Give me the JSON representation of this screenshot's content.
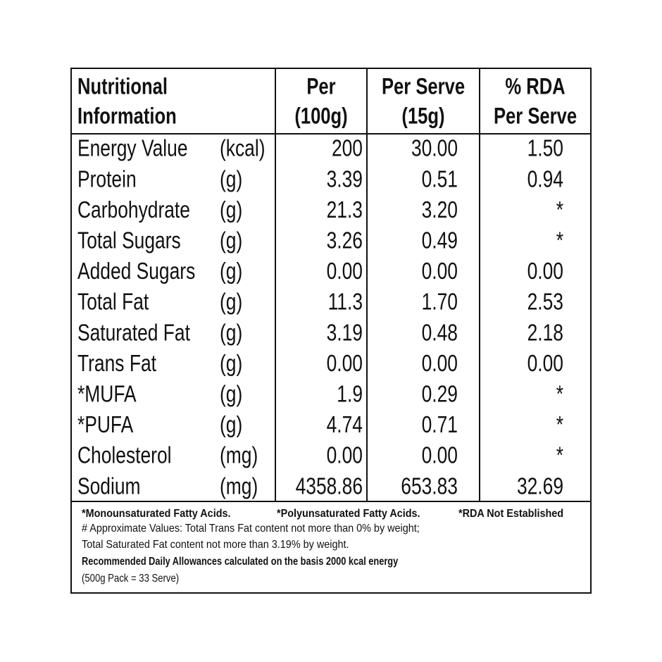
{
  "table": {
    "header": [
      [
        "Nutritional",
        "Information"
      ],
      [
        "Per",
        "(100g)"
      ],
      [
        "Per Serve",
        "(15g)"
      ],
      [
        "% RDA",
        "Per Serve"
      ]
    ],
    "rows": [
      [
        "Energy Value",
        "(kcal)",
        "200",
        "30.00",
        "1.50"
      ],
      [
        "Protein",
        "(g)",
        "3.39",
        "0.51",
        "0.94"
      ],
      [
        "Carbohydrate",
        "(g)",
        "21.3",
        "3.20",
        "*"
      ],
      [
        "Total Sugars",
        "(g)",
        "3.26",
        "0.49",
        "*"
      ],
      [
        "Added Sugars",
        "(g)",
        "0.00",
        "0.00",
        "0.00"
      ],
      [
        "Total Fat",
        "(g)",
        "11.3",
        "1.70",
        "2.53"
      ],
      [
        "Saturated Fat",
        "(g)",
        "3.19",
        "0.48",
        "2.18"
      ],
      [
        "Trans Fat",
        "(g)",
        "0.00",
        "0.00",
        "0.00"
      ],
      [
        "*MUFA",
        "(g)",
        "1.9",
        "0.29",
        "*"
      ],
      [
        "*PUFA",
        "(g)",
        "4.74",
        "0.71",
        "*"
      ],
      [
        "Cholesterol",
        "(mg)",
        "0.00",
        "0.00",
        "*"
      ],
      [
        "Sodium",
        "(mg)",
        "4358.86",
        "653.83",
        "32.69"
      ]
    ]
  },
  "footnotes": {
    "abbreviations": [
      "*Monounsaturated Fatty Acids.",
      "*Polyunsaturated Fatty Acids.",
      "*RDA Not Established"
    ],
    "lines": [
      "# Approximate Values: Total Trans Fat content not more than 0% by weight;",
      "Total Saturated Fat content not more than 3.19% by weight."
    ],
    "basis": "Recommended Daily Allowances calculated on the basis 2000 kcal energy",
    "pack": "(500g Pack = 33 Serve)"
  }
}
